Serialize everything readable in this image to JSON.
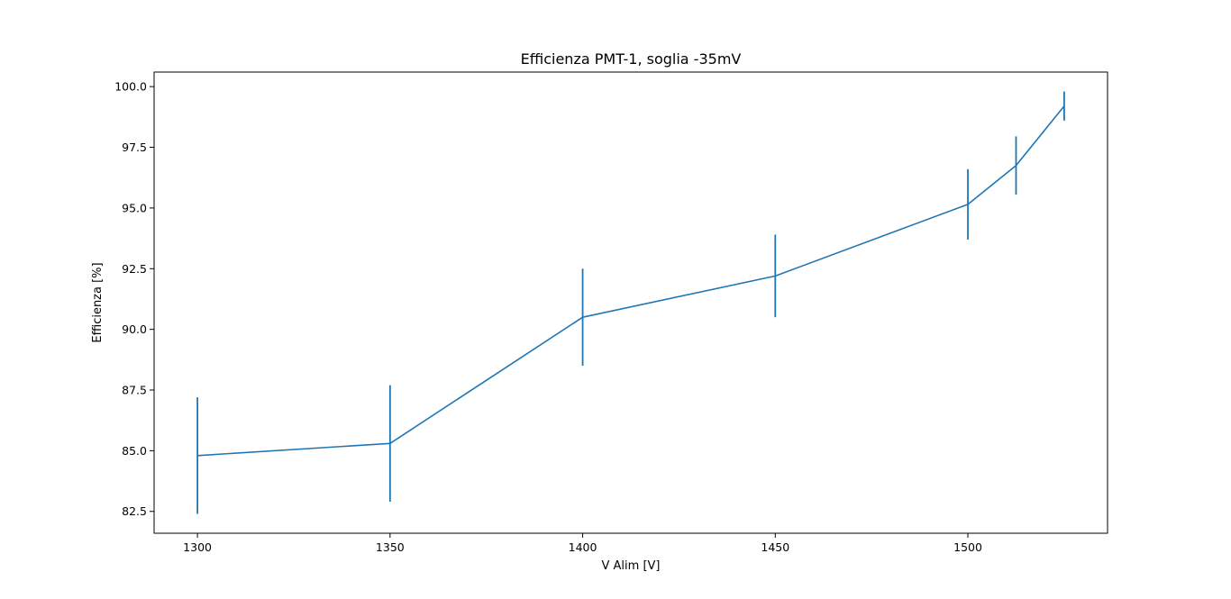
{
  "chart_data": {
    "type": "line",
    "title": "Efficienza PMT-1, soglia -35mV",
    "xlabel": "V Alim [V]",
    "ylabel": "Efficienza [%]",
    "xlim": [
      1288.75,
      1536.25
    ],
    "ylim": [
      81.6,
      100.6
    ],
    "xticks": [
      1300,
      1350,
      1400,
      1450,
      1500
    ],
    "xtick_labels": [
      "1300",
      "1350",
      "1400",
      "1450",
      "1500"
    ],
    "yticks": [
      82.5,
      85.0,
      87.5,
      90.0,
      92.5,
      95.0,
      97.5,
      100.0
    ],
    "ytick_labels": [
      "82.5",
      "85.0",
      "87.5",
      "90.0",
      "92.5",
      "95.0",
      "97.5",
      "100.0"
    ],
    "grid": false,
    "series": [
      {
        "color": "#1f77b4",
        "x": [
          1300,
          1350,
          1400,
          1450,
          1500,
          1512.5,
          1525
        ],
        "y": [
          84.8,
          85.3,
          90.5,
          92.2,
          95.15,
          96.75,
          99.2
        ],
        "yerr": [
          2.4,
          2.4,
          2.0,
          1.7,
          1.45,
          1.2,
          0.6
        ]
      }
    ]
  }
}
